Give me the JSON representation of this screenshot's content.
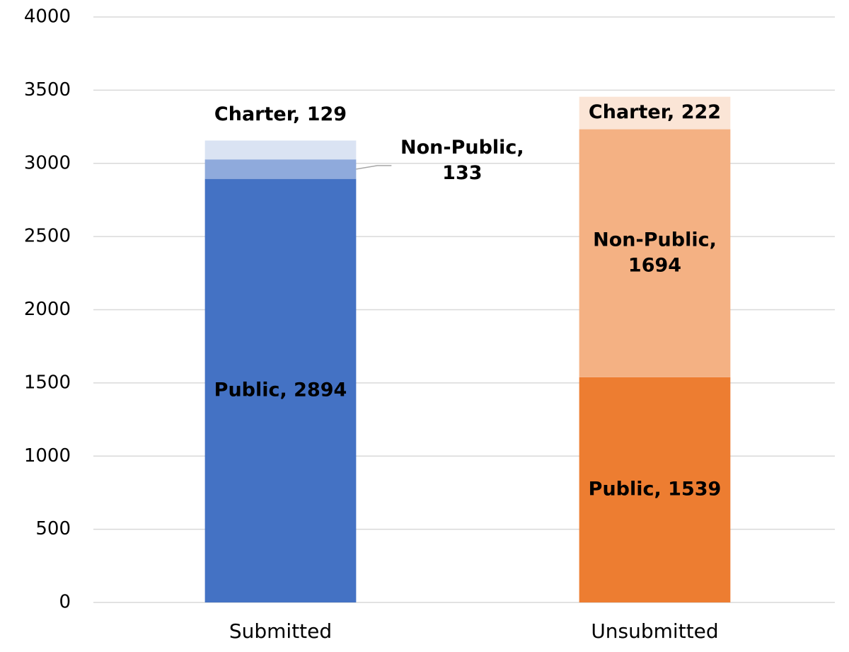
{
  "chart_data": {
    "type": "stacked_bar",
    "categories": [
      "Submitted",
      "Unsubmitted"
    ],
    "series": [
      {
        "name": "Public",
        "colors": [
          "#4472c4",
          "#ed7d31"
        ],
        "values": [
          2894,
          1539
        ],
        "value_labels": [
          "Public, 2894",
          "Public, 1539"
        ]
      },
      {
        "name": "Non-Public",
        "colors": [
          "#8faadc",
          "#f4b183"
        ],
        "values": [
          133,
          1694
        ],
        "value_labels": [
          "Non-Public, 133",
          "Non-Public, 1694"
        ]
      },
      {
        "name": "Charter",
        "colors": [
          "#dae3f3",
          "#fbe5d6"
        ],
        "values": [
          129,
          222
        ],
        "value_labels": [
          "Charter, 129",
          "Charter, 222"
        ]
      }
    ],
    "ylim": [
      0,
      4000
    ],
    "yticks": [
      0,
      500,
      1000,
      1500,
      2000,
      2500,
      3000,
      3500,
      4000
    ],
    "grid": true
  }
}
